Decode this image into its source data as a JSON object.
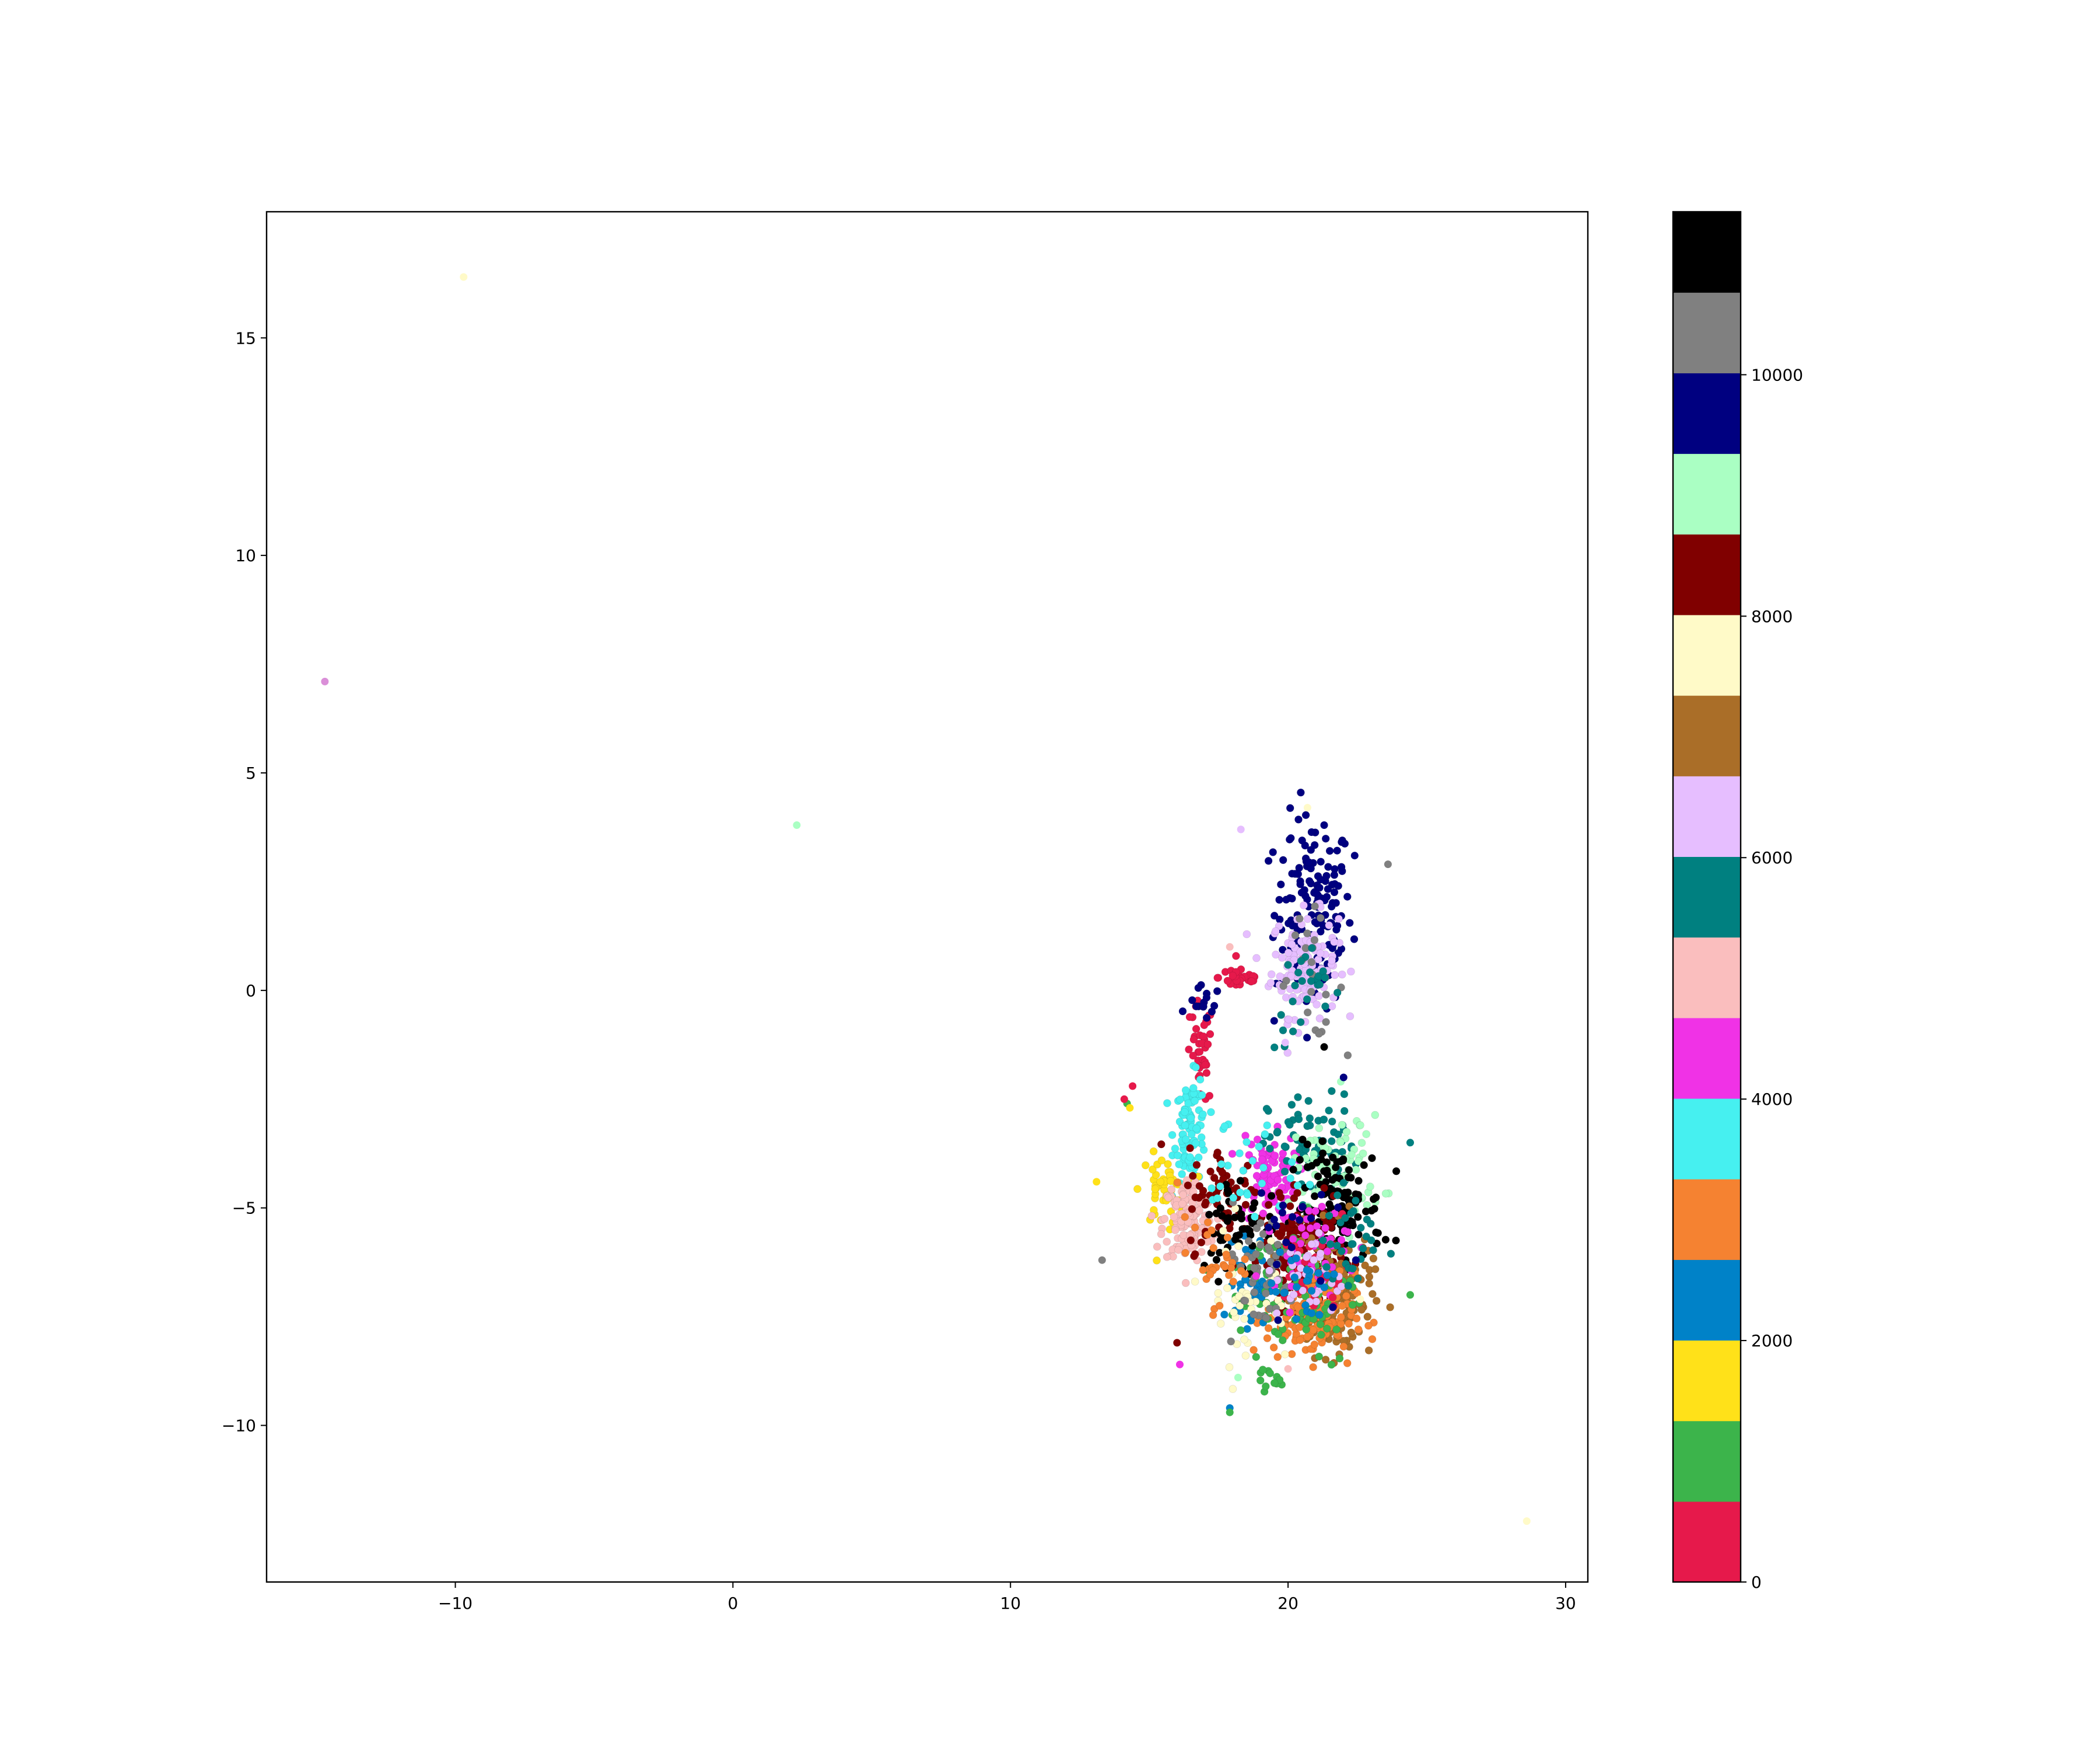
{
  "chart_data": {
    "type": "scatter",
    "title": "",
    "xlabel": "",
    "ylabel": "",
    "xlim": [
      -16.8,
      30.8
    ],
    "ylim": [
      -13.6,
      17.9
    ],
    "xticks": [
      -10,
      0,
      10,
      20,
      30
    ],
    "xtick_labels": [
      "−10",
      "0",
      "10",
      "20",
      "30"
    ],
    "yticks": [
      -10,
      -5,
      0,
      5,
      10,
      15
    ],
    "ytick_labels": [
      "−10",
      "−5",
      "0",
      "5",
      "10",
      "15"
    ],
    "grid": false,
    "colorbar": {
      "range": [
        0,
        11350
      ],
      "ticks": [
        0,
        2000,
        4000,
        6000,
        8000,
        10000
      ],
      "tick_labels": [
        "0",
        "2000",
        "4000",
        "6000",
        "8000",
        "10000"
      ],
      "colors": [
        "#e6194b",
        "#3cb44b",
        "#ffe119",
        "#0082c8",
        "#f58231",
        "#46f0f0",
        "#f032e6",
        "#fabebe",
        "#008080",
        "#e6beff",
        "#aa6e28",
        "#fffac8",
        "#800000",
        "#aaffc3",
        "#000080",
        "#808080",
        "#000000"
      ]
    },
    "clusters": [
      {
        "color": "#000080",
        "cx": 20.9,
        "cy": 1.8,
        "sx": 0.7,
        "sy": 1.1,
        "n": 150
      },
      {
        "color": "#e6beff",
        "cx": 20.6,
        "cy": 0.6,
        "sx": 0.6,
        "sy": 0.6,
        "n": 140
      },
      {
        "color": "#808080",
        "cx": 20.8,
        "cy": 0.3,
        "sx": 0.6,
        "sy": 0.7,
        "n": 25
      },
      {
        "color": "#008080",
        "cx": 20.7,
        "cy": -0.2,
        "sx": 0.6,
        "sy": 0.6,
        "n": 25
      },
      {
        "color": "#e6194b",
        "cx": 18.3,
        "cy": 0.3,
        "sx": 0.4,
        "sy": 0.15,
        "n": 35
      },
      {
        "color": "#e6194b",
        "cx": 16.8,
        "cy": -1.5,
        "sx": 0.25,
        "sy": 0.6,
        "n": 40
      },
      {
        "color": "#000080",
        "cx": 17.0,
        "cy": -0.3,
        "sx": 0.3,
        "sy": 0.2,
        "n": 15
      },
      {
        "color": "#46f0f0",
        "cx": 16.5,
        "cy": -3.2,
        "sx": 0.3,
        "sy": 0.6,
        "n": 90
      },
      {
        "color": "#ffe119",
        "cx": 15.5,
        "cy": -4.6,
        "sx": 0.4,
        "sy": 0.4,
        "n": 50
      },
      {
        "color": "#fabebe",
        "cx": 16.4,
        "cy": -5.3,
        "sx": 0.45,
        "sy": 0.5,
        "n": 140
      },
      {
        "color": "#f032e6",
        "cx": 19.3,
        "cy": -4.3,
        "sx": 0.5,
        "sy": 0.5,
        "n": 90
      },
      {
        "color": "#008080",
        "cx": 20.9,
        "cy": -3.6,
        "sx": 0.8,
        "sy": 0.6,
        "n": 80
      },
      {
        "color": "#aaffc3",
        "cx": 21.8,
        "cy": -4.1,
        "sx": 0.8,
        "sy": 0.6,
        "n": 80
      },
      {
        "color": "#000000",
        "cx": 21.8,
        "cy": -5.0,
        "sx": 0.8,
        "sy": 0.7,
        "n": 130
      },
      {
        "color": "#800000",
        "cx": 20.5,
        "cy": -6.1,
        "sx": 0.7,
        "sy": 0.6,
        "n": 200
      },
      {
        "color": "#aa6e28",
        "cx": 21.6,
        "cy": -7.0,
        "sx": 0.7,
        "sy": 0.7,
        "n": 170
      },
      {
        "color": "#f58231",
        "cx": 20.8,
        "cy": -7.5,
        "sx": 0.8,
        "sy": 0.5,
        "n": 150
      },
      {
        "color": "#0082c8",
        "cx": 18.7,
        "cy": -6.7,
        "sx": 0.3,
        "sy": 0.5,
        "n": 40
      },
      {
        "color": "#3cb44b",
        "cx": 20.2,
        "cy": -6.9,
        "sx": 1.2,
        "sy": 0.9,
        "n": 90
      },
      {
        "color": "#800000",
        "cx": 17.8,
        "cy": -4.8,
        "sx": 0.7,
        "sy": 0.6,
        "n": 70
      },
      {
        "color": "#000000",
        "cx": 18.2,
        "cy": -5.4,
        "sx": 0.7,
        "sy": 0.6,
        "n": 50
      },
      {
        "color": "#fffac8",
        "cx": 18.5,
        "cy": -7.0,
        "sx": 0.8,
        "sy": 0.8,
        "n": 40
      },
      {
        "color": "#808080",
        "cx": 19.0,
        "cy": -6.4,
        "sx": 0.7,
        "sy": 0.7,
        "n": 50
      },
      {
        "color": "#f032e6",
        "cx": 20.8,
        "cy": -5.9,
        "sx": 0.7,
        "sy": 0.5,
        "n": 50
      },
      {
        "color": "#e6194b",
        "cx": 21.0,
        "cy": -6.5,
        "sx": 0.6,
        "sy": 0.5,
        "n": 30
      },
      {
        "color": "#e6beff",
        "cx": 20.8,
        "cy": -6.6,
        "sx": 0.6,
        "sy": 0.5,
        "n": 35
      },
      {
        "color": "#46f0f0",
        "cx": 18.3,
        "cy": -4.1,
        "sx": 1.0,
        "sy": 0.6,
        "n": 30
      },
      {
        "color": "#f58231",
        "cx": 17.2,
        "cy": -6.2,
        "sx": 0.6,
        "sy": 0.5,
        "n": 30
      },
      {
        "color": "#008080",
        "cx": 22.3,
        "cy": -5.8,
        "sx": 0.5,
        "sy": 0.6,
        "n": 30
      },
      {
        "color": "#0082c8",
        "cx": 20.6,
        "cy": -6.8,
        "sx": 0.6,
        "sy": 0.6,
        "n": 25
      },
      {
        "color": "#000080",
        "cx": 19.8,
        "cy": -5.5,
        "sx": 0.8,
        "sy": 0.7,
        "n": 20
      },
      {
        "color": "#3cb44b",
        "cx": 19.1,
        "cy": -8.9,
        "sx": 0.3,
        "sy": 0.15,
        "n": 10
      }
    ],
    "points": [
      {
        "x": -9.7,
        "y": 16.4,
        "color": "#fffac8"
      },
      {
        "x": -14.7,
        "y": 7.1,
        "color": "#da8fd8"
      },
      {
        "x": 2.3,
        "y": 3.8,
        "color": "#aaffc3"
      },
      {
        "x": 28.6,
        "y": -12.2,
        "color": "#fffac8"
      },
      {
        "x": 18.3,
        "y": 3.7,
        "color": "#e6beff"
      },
      {
        "x": 20.7,
        "y": 4.2,
        "color": "#fffac8"
      },
      {
        "x": 23.6,
        "y": 2.9,
        "color": "#808080"
      },
      {
        "x": 22.4,
        "y": 3.1,
        "color": "#000080"
      },
      {
        "x": 21.3,
        "y": 3.8,
        "color": "#000080"
      },
      {
        "x": 20.1,
        "y": 3.5,
        "color": "#000080"
      },
      {
        "x": 21.3,
        "y": -1.3,
        "color": "#000000"
      },
      {
        "x": 13.1,
        "y": -4.4,
        "color": "#ffe119"
      },
      {
        "x": 13.3,
        "y": -6.2,
        "color": "#808080"
      },
      {
        "x": 14.2,
        "y": -2.6,
        "color": "#3cb44b"
      },
      {
        "x": 14.4,
        "y": -2.2,
        "color": "#e6194b"
      },
      {
        "x": 14.1,
        "y": -2.5,
        "color": "#e6194b"
      },
      {
        "x": 14.3,
        "y": -2.7,
        "color": "#ffe119"
      },
      {
        "x": 24.4,
        "y": -3.5,
        "color": "#008080"
      },
      {
        "x": 24.4,
        "y": -7.0,
        "color": "#3cb44b"
      },
      {
        "x": 16.0,
        "y": -8.1,
        "color": "#800000"
      },
      {
        "x": 16.1,
        "y": -8.6,
        "color": "#f032e6"
      },
      {
        "x": 17.9,
        "y": -9.6,
        "color": "#0082c8"
      },
      {
        "x": 17.9,
        "y": -9.7,
        "color": "#3cb44b"
      },
      {
        "x": 20.0,
        "y": -8.7,
        "color": "#fabebe"
      },
      {
        "x": 18.2,
        "y": -8.9,
        "color": "#aaffc3"
      },
      {
        "x": 22.6,
        "y": -7.1,
        "color": "#fffac8"
      },
      {
        "x": 17.9,
        "y": 1.0,
        "color": "#fabebe"
      },
      {
        "x": 19.5,
        "y": -0.7,
        "color": "#000080"
      },
      {
        "x": 19.9,
        "y": -1.2,
        "color": "#e6beff"
      },
      {
        "x": 21.9,
        "y": -2.1,
        "color": "#aaffc3"
      },
      {
        "x": 22.0,
        "y": -2.0,
        "color": "#000080"
      }
    ]
  }
}
